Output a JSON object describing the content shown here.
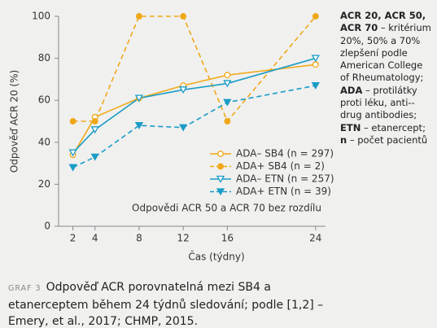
{
  "chart_data": {
    "type": "line",
    "x_label": "Čas (týdny)",
    "y_label": "Odpověď ACR 20 (%)",
    "annotation": "Odpovědi ACR 50 a ACR 70 bez rozdílu",
    "x": [
      2,
      4,
      8,
      12,
      16,
      24
    ],
    "xlim": [
      0.7,
      24.9
    ],
    "xticks": [
      2,
      4,
      8,
      12,
      16,
      24
    ],
    "ylim": [
      0,
      100
    ],
    "yticks": [
      0,
      20,
      40,
      60,
      80,
      100
    ],
    "grid": false,
    "legend": "lower right",
    "series": [
      {
        "name": "ADA– SB4 (n = 297)",
        "color": "#f0a818",
        "line_style": "solid",
        "marker": "circle",
        "marker_fill": "open",
        "values": [
          34,
          52,
          61,
          67,
          72,
          77
        ]
      },
      {
        "name": "ADA+ SB4 (n = 2)",
        "color": "#f0a818",
        "line_style": "dashed",
        "marker": "circle",
        "marker_fill": "filled",
        "values": [
          50,
          50,
          100,
          100,
          50,
          100
        ]
      },
      {
        "name": "ADA– ETN (n = 257)",
        "color": "#1a9cc6",
        "line_style": "solid",
        "marker": "triangle-down",
        "marker_fill": "open",
        "values": [
          35,
          46,
          61,
          65,
          68,
          80
        ]
      },
      {
        "name": "ADA+ ETN (n = 39)",
        "color": "#1a9cc6",
        "line_style": "dashed",
        "marker": "triangle-down",
        "marker_fill": "filled",
        "values": [
          28,
          33,
          48,
          47,
          59,
          67
        ]
      }
    ]
  },
  "note": [
    {
      "bold": "ACR 20, ACR 50, ACR 70",
      "text": " – kritérium 20%, 50% a 70% zlepšení podle American College of Rheumatology;"
    },
    {
      "bold": "ADA",
      "text": " – protilátky proti léku, anti--drug antibodies;"
    },
    {
      "bold": "ETN",
      "text": " – etanercept;"
    },
    {
      "bold": "n",
      "text": " – počet pacientů"
    }
  ],
  "caption": {
    "label": "GRAF 3",
    "text": "Odpověď ACR porovnatelná mezi SB4 a etanerceptem během 24 týdnů sledování; podle [1,2] – Emery, et al., 2017; CHMP, 2015."
  }
}
